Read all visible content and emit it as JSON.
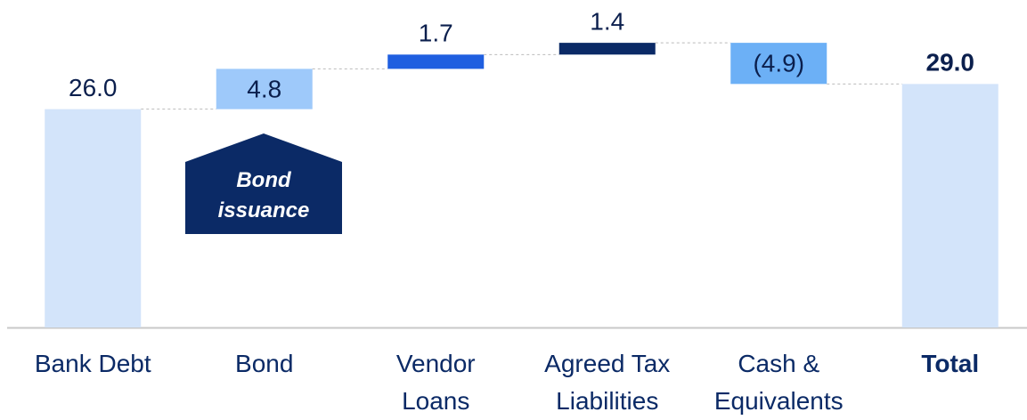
{
  "chart_data": {
    "type": "waterfall",
    "categories": [
      "Bank Debt",
      "Bond",
      "Vendor\nLoans",
      "Agreed Tax\nLiabilities",
      "Cash &\nEquivalents",
      "Total"
    ],
    "values": [
      26,
      4.8,
      1.7,
      1.4,
      -4.9,
      29
    ],
    "value_labels": [
      "26.0",
      "4.8",
      "1.7",
      "1.4",
      "(4.9)",
      "29.0"
    ],
    "colors": [
      "#d3e4fa",
      "#9ec9fa",
      "#1f5fe0",
      "#0b2a66",
      "#6cb0f6",
      "#d3e4fa"
    ],
    "annotation": "Bond\nissuance",
    "ylim": [
      0,
      39
    ]
  }
}
